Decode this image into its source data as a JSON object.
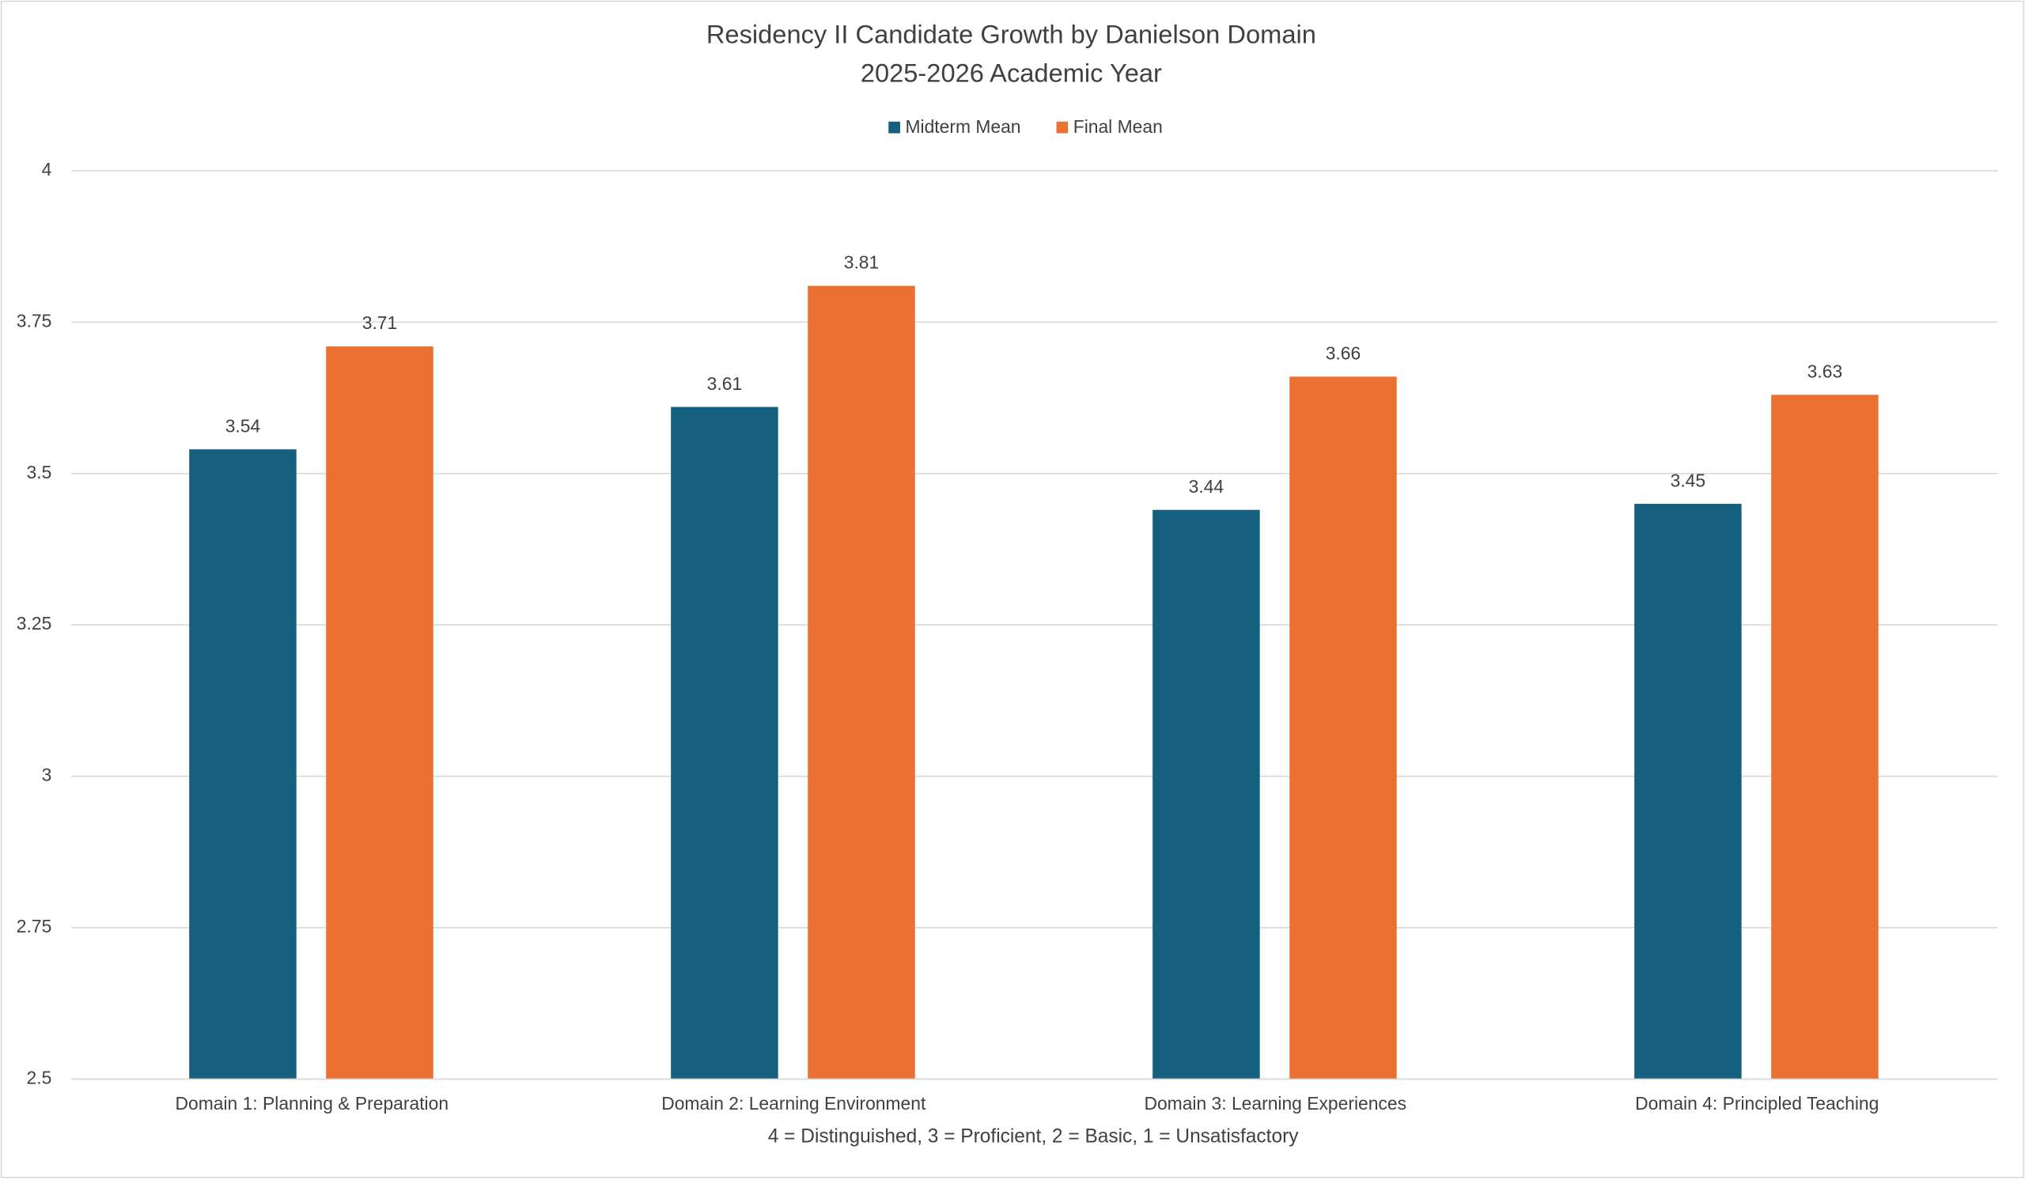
{
  "chart_data": {
    "type": "bar",
    "title": "Residency II Candidate Growth by Danielson Domain",
    "subtitle": "2025-2026 Academic Year",
    "x_label": "4 = Distinguished, 3 = Proficient, 2 = Basic, 1 = Unsatisfactory",
    "categories": [
      "Domain 1: Planning & Preparation",
      "Domain 2: Learning Environment",
      "Domain 3: Learning Experiences",
      "Domain 4: Principled Teaching"
    ],
    "series": [
      {
        "name": "Midterm Mean",
        "color": "#16607f",
        "values": [
          3.54,
          3.61,
          3.44,
          3.45
        ]
      },
      {
        "name": "Final Mean",
        "color": "#e97132",
        "values": [
          3.71,
          3.81,
          3.66,
          3.63
        ]
      }
    ],
    "ylim": [
      2.5,
      4
    ],
    "yticks": [
      2.5,
      2.75,
      3,
      3.25,
      3.5,
      3.75,
      4
    ],
    "grid": true,
    "legend": "top"
  }
}
